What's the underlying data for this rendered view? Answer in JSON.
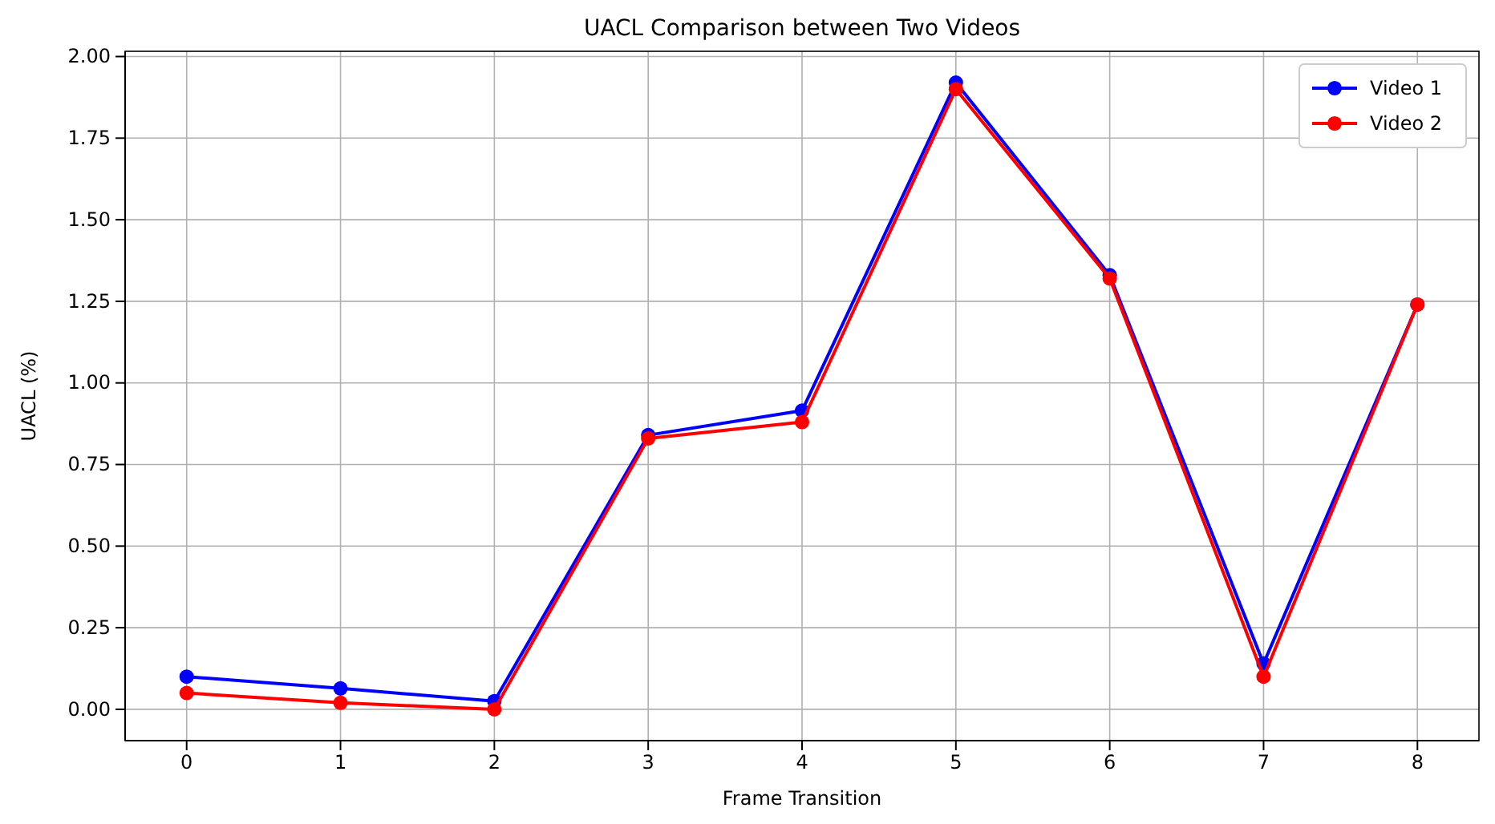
{
  "chart_data": {
    "type": "line",
    "title": "UACL Comparison between Two Videos",
    "xlabel": "Frame Transition",
    "ylabel": "UACL (%)",
    "x": [
      0,
      1,
      2,
      3,
      4,
      5,
      6,
      7,
      8
    ],
    "series": [
      {
        "name": "Video 1",
        "color": "#0000ff",
        "values": [
          0.1,
          0.064,
          0.025,
          0.84,
          0.915,
          1.92,
          1.33,
          0.14,
          1.24
        ]
      },
      {
        "name": "Video 2",
        "color": "#ff0000",
        "values": [
          0.05,
          0.02,
          0.0,
          0.83,
          0.88,
          1.9,
          1.32,
          0.1,
          1.24
        ]
      }
    ],
    "xlim": [
      -0.4,
      8.4
    ],
    "xticks": [
      0,
      1,
      2,
      3,
      4,
      5,
      6,
      7,
      8
    ],
    "ylim": [
      -0.096,
      2.016
    ],
    "yticks": [
      {
        "value": 0,
        "label": "0.00"
      },
      {
        "value": 0.25,
        "label": "0.25"
      },
      {
        "value": 0.5,
        "label": "0.50"
      },
      {
        "value": 0.75,
        "label": "0.75"
      },
      {
        "value": 1,
        "label": "1.00"
      },
      {
        "value": 1.25,
        "label": "1.25"
      },
      {
        "value": 1.5,
        "label": "1.50"
      },
      {
        "value": 1.75,
        "label": "1.75"
      },
      {
        "value": 2,
        "label": "2.00"
      }
    ],
    "grid": true,
    "legend": "top right",
    "marker": "circle",
    "line_style": "solid"
  }
}
